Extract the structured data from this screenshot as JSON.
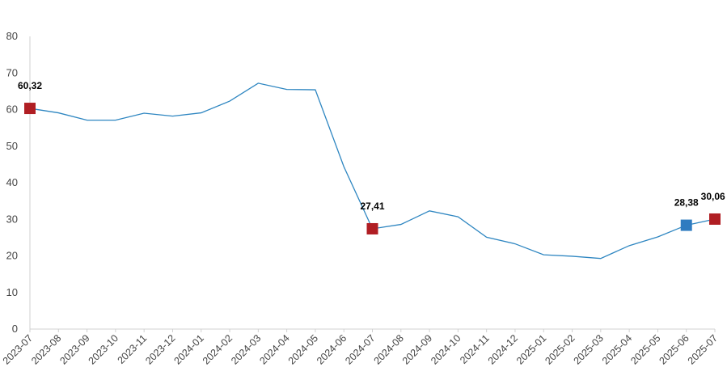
{
  "chart_data": {
    "type": "line",
    "title": "",
    "xlabel": "",
    "ylabel": "",
    "ylim": [
      0,
      80
    ],
    "yticks": [
      0,
      10,
      20,
      30,
      40,
      50,
      60,
      70,
      80
    ],
    "grid": false,
    "legend": "none",
    "line_color": "#2E86C1",
    "categories": [
      "2023-07",
      "2023-08",
      "2023-09",
      "2023-10",
      "2023-11",
      "2023-12",
      "2024-01",
      "2024-02",
      "2024-03",
      "2024-04",
      "2024-05",
      "2024-06",
      "2024-07",
      "2024-08",
      "2024-09",
      "2024-10",
      "2024-11",
      "2024-12",
      "2025-01",
      "2025-02",
      "2025-03",
      "2025-04",
      "2025-05",
      "2025-06",
      "2025-07"
    ],
    "tick_labels": [
      "2023-07",
      "2023-08",
      "2023-09",
      "2023-10",
      "2023-11",
      "2023-12",
      "2024-01",
      "2024-02",
      "2024-03",
      "2024-04",
      "2024-05",
      "2024-06",
      "2024-07",
      "2024-08",
      "2024-09",
      "2024-10",
      "2024-11",
      "2024-12",
      "2025-01",
      "2025-02",
      "2025-03",
      "2025-04",
      "2025-05",
      "2025-06",
      "2025-07"
    ],
    "series": [
      {
        "values": [
          60.32,
          59.1,
          57.1,
          57.1,
          59.0,
          58.2,
          59.1,
          62.3,
          67.2,
          65.5,
          65.4,
          44.4,
          27.41,
          28.6,
          32.3,
          30.7,
          25.1,
          23.3,
          20.3,
          19.9,
          19.3,
          22.8,
          25.2,
          28.38,
          30.06
        ]
      }
    ],
    "highlights": [
      {
        "index": 0,
        "label": "60,32",
        "color": "#B01E23"
      },
      {
        "index": 12,
        "label": "27,41",
        "color": "#B01E23"
      },
      {
        "index": 23,
        "label": "28,38",
        "color": "#2E7BC0"
      },
      {
        "index": 24,
        "label": "30,06",
        "color": "#B01E23"
      }
    ]
  }
}
